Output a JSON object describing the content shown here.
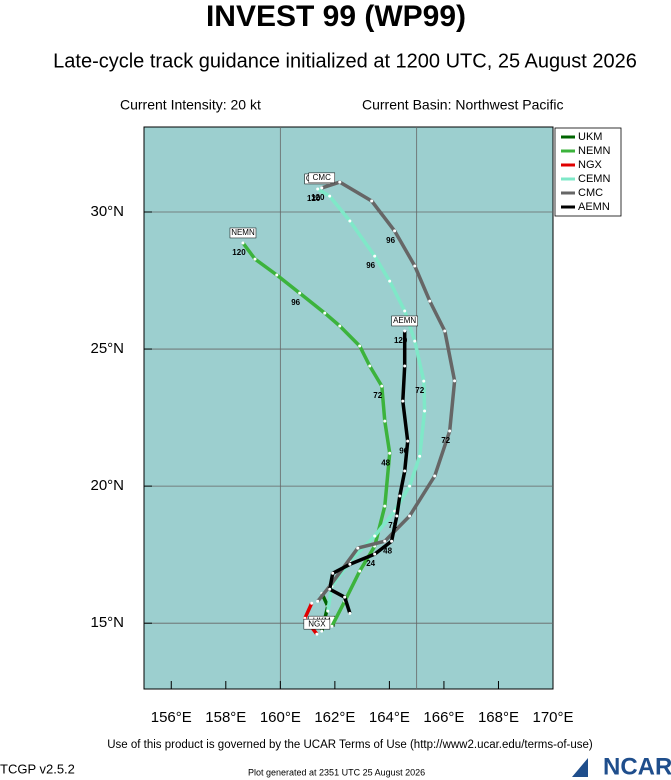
{
  "chart_data": {
    "type": "track",
    "title": "INVEST 99 (WP99)",
    "subtitle": "Late-cycle track guidance initialized at 1200 UTC, 25 August 2026",
    "intensity": "Current Intensity: 20 kt",
    "basin": "Current Basin: Northwest Pacific",
    "xlim": [
      155,
      170
    ],
    "ylim": [
      12.6,
      33.1
    ],
    "xticks": [
      {
        "value": 156,
        "label": "156°E"
      },
      {
        "value": 158,
        "label": "158°E"
      },
      {
        "value": 160,
        "label": "160°E"
      },
      {
        "value": 162,
        "label": "162°E"
      },
      {
        "value": 164,
        "label": "164°E"
      },
      {
        "value": 166,
        "label": "166°E"
      },
      {
        "value": 168,
        "label": "168°E"
      },
      {
        "value": 170,
        "label": "170°E"
      }
    ],
    "yticks": [
      {
        "value": 15,
        "label": "15°N"
      },
      {
        "value": 20,
        "label": "20°N"
      },
      {
        "value": 25,
        "label": "25°N"
      },
      {
        "value": 30,
        "label": "30°N"
      }
    ],
    "xgrid": [
      160,
      165
    ],
    "ygrid": [
      15,
      20,
      25,
      30
    ],
    "background": "#9ccfcf",
    "legend": "upper right",
    "series": [
      {
        "name": "UKM",
        "color": "#006400",
        "x": [
          161.52,
          161.74,
          161.52
        ],
        "values": [
          16.09,
          15.62,
          14.71
        ],
        "tau": [
          null,
          null,
          null
        ]
      },
      {
        "name": "NEMN",
        "color": "#3cb33c",
        "x": [
          161.89,
          162.36,
          162.91,
          163.46,
          163.83,
          164.01,
          163.83,
          163.72,
          163.28,
          162.91,
          162.18,
          161.63,
          160.71,
          159.87,
          159.07,
          158.63
        ],
        "values": [
          14.89,
          15.8,
          16.9,
          17.81,
          19.27,
          21.2,
          22.37,
          23.65,
          24.38,
          25.11,
          25.84,
          26.31,
          27.04,
          27.7,
          28.28,
          28.87
        ],
        "tau": [
          null,
          null,
          null,
          null,
          null,
          "48",
          null,
          "72",
          null,
          null,
          null,
          null,
          "96",
          null,
          null,
          "120"
        ]
      },
      {
        "name": "NGX",
        "color": "#e00000",
        "x": [
          161.15,
          160.9,
          161.34
        ],
        "values": [
          15.73,
          15.18,
          14.6
        ],
        "tau": [
          null,
          null,
          null
        ]
      },
      {
        "name": "CEMN",
        "color": "#7fe8c8",
        "x": [
          161.74,
          161.89,
          162.55,
          163.46,
          164.19,
          164.74,
          165.11,
          165.29,
          165.26,
          164.93,
          164.56,
          164.01,
          163.46,
          162.55,
          161.81,
          161.37
        ],
        "values": [
          15.44,
          16.35,
          17.26,
          18.18,
          19.09,
          20.0,
          21.09,
          22.74,
          23.83,
          25.29,
          26.39,
          27.48,
          28.39,
          29.67,
          30.58,
          30.84
        ],
        "tau": [
          null,
          null,
          null,
          null,
          null,
          null,
          null,
          null,
          "72",
          null,
          null,
          null,
          "96",
          null,
          null,
          "120"
        ]
      },
      {
        "name": "CMC",
        "color": "#666666",
        "x": [
          161.37,
          161.81,
          162.84,
          163.83,
          164.74,
          165.66,
          166.21,
          166.39,
          166.03,
          165.48,
          164.93,
          164.19,
          163.35,
          162.18,
          161.52
        ],
        "values": [
          15.8,
          16.35,
          17.74,
          17.99,
          18.91,
          20.37,
          22.01,
          23.84,
          25.66,
          26.75,
          28.03,
          29.31,
          30.4,
          31.09,
          30.88
        ],
        "tau": [
          null,
          null,
          null,
          null,
          null,
          null,
          "72",
          null,
          null,
          null,
          null,
          "96",
          null,
          null,
          "120"
        ]
      },
      {
        "name": "AEMN",
        "color": "#000000",
        "x": [
          162.55,
          162.36,
          161.81,
          161.92,
          162.55,
          163.46,
          164.08,
          164.27,
          164.38,
          164.56,
          164.67,
          164.49,
          164.56,
          164.56
        ],
        "values": [
          15.36,
          15.95,
          16.24,
          16.82,
          17.15,
          17.52,
          17.99,
          18.91,
          19.64,
          20.55,
          21.64,
          23.1,
          24.38,
          25.66
        ],
        "tau": [
          null,
          null,
          null,
          null,
          null,
          "24",
          "48",
          "72",
          null,
          null,
          "96",
          null,
          null,
          "120"
        ]
      }
    ]
  },
  "footer": {
    "terms": "Use of this product is governed by the UCAR Terms of Use (http://www2.ucar.edu/terms-of-use)",
    "version": "TCGP v2.5.2",
    "generated": "Plot generated at 2351 UTC   25 August 2026",
    "logo": "NCAR"
  }
}
